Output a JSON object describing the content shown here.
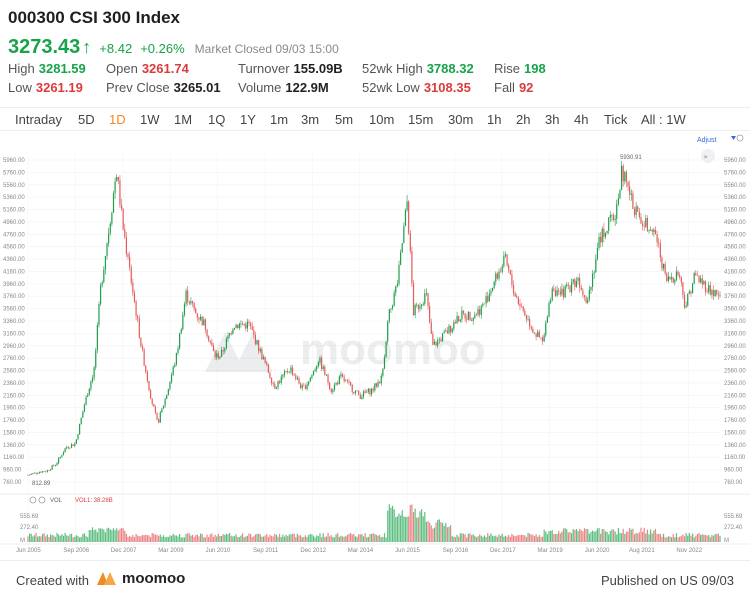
{
  "header": {
    "title": "000300 CSI 300 Index",
    "price": "3273.43",
    "change": "+8.42",
    "change_pct": "+0.26%",
    "status": "Market Closed",
    "status_time": "09/03 15:00"
  },
  "stats": {
    "high_label": "High",
    "high": "3281.59",
    "low_label": "Low",
    "low": "3261.19",
    "open_label": "Open",
    "open": "3261.74",
    "prev_close_label": "Prev Close",
    "prev_close": "3265.01",
    "turnover_label": "Turnover",
    "turnover": "155.09B",
    "volume_label": "Volume",
    "volume": "122.9M",
    "wk52_high_label": "52wk High",
    "wk52_high": "3788.32",
    "wk52_low_label": "52wk Low",
    "wk52_low": "3108.35",
    "rise_label": "Rise",
    "rise": "198",
    "fall_label": "Fall",
    "fall": "92"
  },
  "tabs": [
    "Intraday",
    "5D",
    "1D",
    "1W",
    "1M",
    "1Q",
    "1Y",
    "1m",
    "3m",
    "5m",
    "10m",
    "15m",
    "30m",
    "1h",
    "2h",
    "3h",
    "4h",
    "Tick",
    "All : 1W"
  ],
  "active_tab": "1D",
  "chart": {
    "adjust_label": "Adjust",
    "watermark": "moomoo",
    "max_label": "5930.91",
    "min_label": "812.89",
    "vol_label": "VOL",
    "vol1_label": "VOL1: 38.28B",
    "vol_ticks": [
      "555.69",
      "272.40",
      "M"
    ]
  },
  "chart_data": {
    "type": "candlestick",
    "y_ticks": [
      "5960.00",
      "5760.00",
      "5560.00",
      "5360.00",
      "5160.00",
      "4960.00",
      "4760.00",
      "4560.00",
      "4360.00",
      "4160.00",
      "3960.00",
      "3760.00",
      "3560.00",
      "3360.00",
      "3160.00",
      "2960.00",
      "2760.00",
      "2560.00",
      "2360.00",
      "2160.00",
      "1960.00",
      "1760.00",
      "1560.00",
      "1360.00",
      "1160.00",
      "960.00",
      "760.00"
    ],
    "x_ticks": [
      "Jun 2005",
      "Sep 2006",
      "Dec 2007",
      "Mar 2009",
      "Jun 2010",
      "Sep 2011",
      "Dec 2012",
      "Mar 2014",
      "Jun 2015",
      "Sep 2016",
      "Dec 2017",
      "Mar 2019",
      "Jun 2020",
      "Aug 2021",
      "Nov 2022"
    ],
    "ylim": [
      760,
      5960
    ],
    "series": [
      {
        "values": [
          [
            "2005-06",
            870
          ],
          [
            "2005-09",
            920
          ],
          [
            "2005-12",
            940
          ],
          [
            "2006-03",
            1060
          ],
          [
            "2006-06",
            1320
          ],
          [
            "2006-09",
            1380
          ],
          [
            "2006-12",
            2040
          ],
          [
            "2007-03",
            2600
          ],
          [
            "2007-05",
            3900
          ],
          [
            "2007-08",
            5000
          ],
          [
            "2007-10",
            5800
          ],
          [
            "2007-12",
            4900
          ],
          [
            "2008-03",
            3900
          ],
          [
            "2008-06",
            2900
          ],
          [
            "2008-09",
            2100
          ],
          [
            "2008-11",
            1700
          ],
          [
            "2009-02",
            2200
          ],
          [
            "2009-05",
            2800
          ],
          [
            "2009-08",
            3800
          ],
          [
            "2009-11",
            3500
          ],
          [
            "2010-02",
            3300
          ],
          [
            "2010-05",
            2800
          ],
          [
            "2010-07",
            2800
          ],
          [
            "2010-11",
            3300
          ],
          [
            "2011-04",
            3300
          ],
          [
            "2011-08",
            2800
          ],
          [
            "2011-12",
            2300
          ],
          [
            "2012-05",
            2600
          ],
          [
            "2012-09",
            2250
          ],
          [
            "2012-12",
            2500
          ],
          [
            "2013-02",
            2750
          ],
          [
            "2013-06",
            2250
          ],
          [
            "2013-09",
            2450
          ],
          [
            "2014-03",
            2150
          ],
          [
            "2014-07",
            2250
          ],
          [
            "2014-10",
            2450
          ],
          [
            "2014-12",
            3400
          ],
          [
            "2015-03",
            4000
          ],
          [
            "2015-06",
            5300
          ],
          [
            "2015-08",
            3500
          ],
          [
            "2015-12",
            3800
          ],
          [
            "2016-02",
            2950
          ],
          [
            "2016-06",
            3150
          ],
          [
            "2016-11",
            3450
          ],
          [
            "2017-03",
            3450
          ],
          [
            "2017-06",
            3600
          ],
          [
            "2017-11",
            4150
          ],
          [
            "2018-01",
            4350
          ],
          [
            "2018-04",
            3800
          ],
          [
            "2018-10",
            3200
          ],
          [
            "2019-01",
            3000
          ],
          [
            "2019-04",
            3950
          ],
          [
            "2019-06",
            3750
          ],
          [
            "2019-12",
            4050
          ],
          [
            "2020-03",
            3700
          ],
          [
            "2020-07",
            4700
          ],
          [
            "2020-12",
            5100
          ],
          [
            "2021-02",
            5800
          ],
          [
            "2021-05",
            5300
          ],
          [
            "2021-08",
            4950
          ],
          [
            "2021-12",
            4900
          ],
          [
            "2022-04",
            4000
          ],
          [
            "2022-08",
            4150
          ],
          [
            "2022-10",
            3600
          ],
          [
            "2023-01",
            4100
          ],
          [
            "2023-06",
            3850
          ],
          [
            "2023-09",
            3750
          ]
        ]
      }
    ]
  }
}
